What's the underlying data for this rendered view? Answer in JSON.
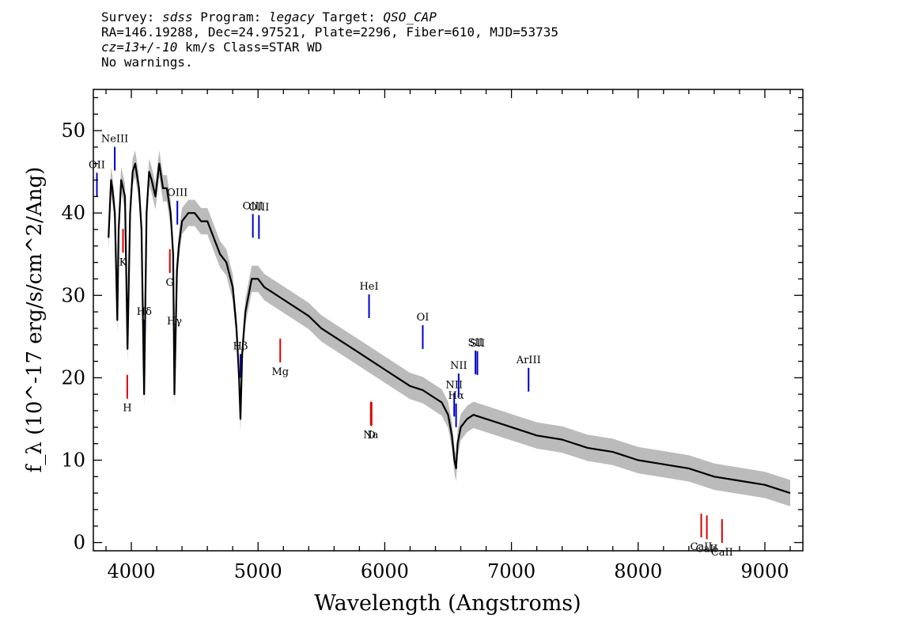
{
  "header": {
    "survey_label": "Survey: ",
    "survey": "sdss",
    "program_label": " Program: ",
    "program": "legacy",
    "target_label": " Target: ",
    "target": "QSO_CAP",
    "line2": "RA=146.19288, Dec=24.97521, Plate=2296, Fiber=610, MJD=53735",
    "cz": "cz=13+/-10",
    "cz_rest": " km/s Class=STAR WD",
    "line4": "No warnings."
  },
  "chart_data": {
    "type": "line",
    "xlabel": "Wavelength (Angstroms)",
    "ylabel": "f_λ (10^-17 erg/s/cm^2/Ang)",
    "xlim": [
      3700,
      9300
    ],
    "ylim": [
      -1,
      55
    ],
    "xticks": [
      4000,
      5000,
      6000,
      7000,
      8000,
      9000
    ],
    "yticks": [
      0,
      10,
      20,
      30,
      40,
      50
    ],
    "grid": false,
    "colors": {
      "flux": "#000000",
      "error": "#bbbbbb",
      "emission": "#0000cc",
      "absorption": "#dd0000"
    },
    "series": [
      {
        "x": [
          3820,
          3840,
          3850,
          3870,
          3889,
          3900,
          3920,
          3950,
          3970,
          3990,
          4010,
          4030,
          4060,
          4080,
          4101,
          4120,
          4140,
          4160,
          4190,
          4220,
          4250,
          4280,
          4310,
          4330,
          4340,
          4360,
          4375,
          4400,
          4450,
          4500,
          4550,
          4600,
          4650,
          4700,
          4750,
          4800,
          4830,
          4850,
          4861,
          4875,
          4900,
          4950,
          5000,
          5050,
          5100,
          5200,
          5300,
          5400,
          5500,
          5600,
          5700,
          5800,
          5900,
          6000,
          6100,
          6200,
          6300,
          6400,
          6450,
          6500,
          6530,
          6550,
          6563,
          6575,
          6600,
          6650,
          6700,
          6800,
          6900,
          7000,
          7200,
          7400,
          7600,
          7800,
          8000,
          8200,
          8400,
          8600,
          8800,
          9000,
          9200
        ],
        "values": [
          37,
          44,
          43,
          40,
          27,
          38,
          44,
          42,
          23.5,
          40,
          45,
          46,
          43,
          38,
          18,
          40,
          45,
          44,
          42,
          46,
          43,
          43,
          40,
          35,
          18,
          33,
          36,
          39,
          40,
          40,
          39,
          39,
          37,
          35,
          34,
          31,
          26,
          20,
          15,
          23,
          28,
          32,
          32,
          31,
          30.5,
          29.5,
          28.5,
          27.5,
          26,
          25,
          24,
          23,
          22,
          21,
          20,
          19,
          18.5,
          17.5,
          17,
          15.5,
          13,
          10,
          9,
          12,
          14,
          15,
          15.5,
          15,
          14.5,
          14,
          13,
          12.5,
          11.5,
          11,
          10,
          9.5,
          9,
          8,
          7.5,
          7,
          6
        ]
      }
    ],
    "line_labels": [
      {
        "name": "NeIII",
        "wave": 3869,
        "kind": "emission"
      },
      {
        "name": "OII",
        "wave": 3728,
        "kind": "emission"
      },
      {
        "name": "Hδ",
        "wave": 4102,
        "kind": "emission"
      },
      {
        "name": "Hγ",
        "wave": 4340,
        "kind": "emission"
      },
      {
        "name": "OIII",
        "wave": 4363,
        "kind": "emission"
      },
      {
        "name": "Hβ",
        "wave": 4861,
        "kind": "emission"
      },
      {
        "name": "OIII",
        "wave": 4959,
        "kind": "emission"
      },
      {
        "name": "OIII",
        "wave": 5007,
        "kind": "emission"
      },
      {
        "name": "HeI",
        "wave": 5876,
        "kind": "emission"
      },
      {
        "name": "OI",
        "wave": 6300,
        "kind": "emission"
      },
      {
        "name": "NII",
        "wave": 6548,
        "kind": "emission"
      },
      {
        "name": "Hα",
        "wave": 6563,
        "kind": "emission"
      },
      {
        "name": "NII",
        "wave": 6583,
        "kind": "emission"
      },
      {
        "name": "SII",
        "wave": 6716,
        "kind": "emission"
      },
      {
        "name": "SII",
        "wave": 6731,
        "kind": "emission"
      },
      {
        "name": "ArIII",
        "wave": 7135,
        "kind": "emission"
      },
      {
        "name": "K",
        "wave": 3934,
        "kind": "absorption"
      },
      {
        "name": "H",
        "wave": 3968,
        "kind": "absorption"
      },
      {
        "name": "G",
        "wave": 4304,
        "kind": "absorption"
      },
      {
        "name": "Mg",
        "wave": 5175,
        "kind": "absorption"
      },
      {
        "name": "Na",
        "wave": 5890,
        "kind": "absorption"
      },
      {
        "name": "D",
        "wave": 5896,
        "kind": "absorption"
      },
      {
        "name": "CaII",
        "wave": 8498,
        "kind": "absorption"
      },
      {
        "name": "CaII",
        "wave": 8542,
        "kind": "absorption"
      },
      {
        "name": "CaII",
        "wave": 8662,
        "kind": "absorption"
      }
    ]
  }
}
